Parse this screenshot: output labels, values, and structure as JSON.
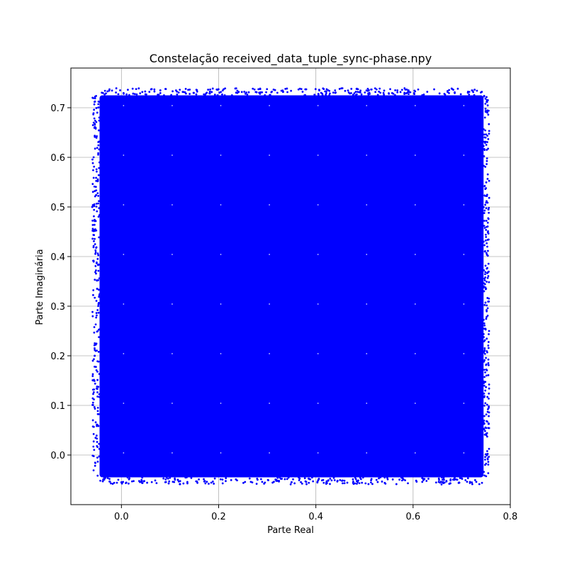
{
  "chart_data": {
    "type": "scatter",
    "title": "Constelação received_data_tuple_sync-phase.npy",
    "xlabel": "Parte Real",
    "ylabel": "Parte Imaginária",
    "xlim": [
      -0.104,
      0.8
    ],
    "ylim": [
      -0.1,
      0.78
    ],
    "x_ticks": [
      0.0,
      0.2,
      0.4,
      0.6,
      0.8
    ],
    "x_tick_labels": [
      "0.0",
      "0.2",
      "0.4",
      "0.6",
      "0.8"
    ],
    "y_ticks": [
      0.0,
      0.1,
      0.2,
      0.3,
      0.4,
      0.5,
      0.6,
      0.7
    ],
    "y_tick_labels": [
      "0.0",
      "0.1",
      "0.2",
      "0.3",
      "0.4",
      "0.5",
      "0.6",
      "0.7"
    ],
    "grid": true,
    "marker_color": "#0000ff",
    "grid_color": "#b0b0b0",
    "point_cloud": {
      "x_range": [
        -0.045,
        0.745
      ],
      "y_range": [
        -0.045,
        0.725
      ],
      "constellation_points": 64,
      "levels": [
        0.0,
        0.1,
        0.2,
        0.3,
        0.4,
        0.5,
        0.6,
        0.7
      ]
    },
    "series": [
      {
        "x": [
          -0.06,
          -0.05,
          0.755,
          0.75,
          0.745,
          0.0,
          0.66,
          0.72,
          0.08,
          0.59,
          0.44,
          -0.055,
          0.745
        ],
        "y": [
          0.5,
          0.335,
          0.495,
          0.335,
          0.43,
          -0.055,
          -0.055,
          -0.04,
          0.735,
          0.735,
          0.73,
          0.2,
          0.065
        ]
      }
    ]
  }
}
